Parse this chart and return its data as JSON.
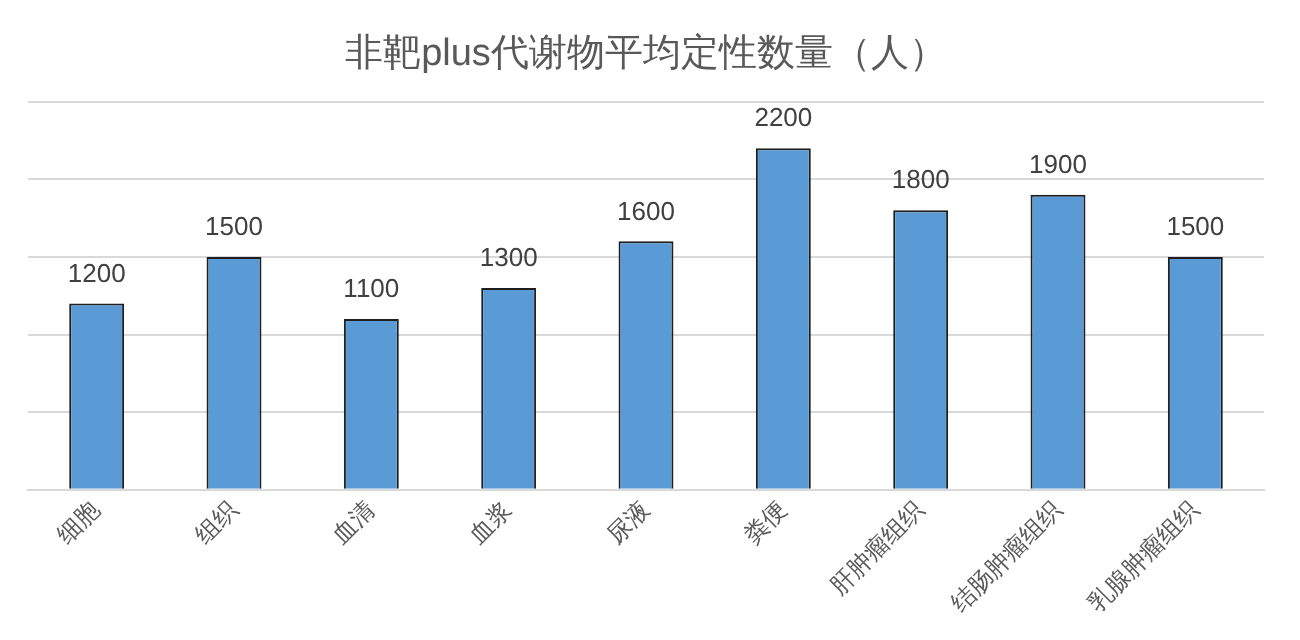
{
  "chart_data": {
    "type": "bar",
    "title": "非靶plus代谢物平均定性数量（人）",
    "categories": [
      "细胞",
      "组织",
      "血清",
      "血浆",
      "尿液",
      "粪便",
      "肝肿瘤组织",
      "结肠肿瘤组织",
      "乳腺肿瘤组织"
    ],
    "values": [
      1200,
      1500,
      1100,
      1300,
      1600,
      2200,
      1800,
      1900,
      1500
    ],
    "color": "#5b9bd5",
    "data_labels": true,
    "grid": "y",
    "tick_labels": "x",
    "ylim": [
      0,
      2500
    ],
    "yticks": [
      {
        "value": 0,
        "label": null
      },
      {
        "value": 500,
        "label": null
      },
      {
        "value": 1000,
        "label": null
      },
      {
        "value": 1500,
        "label": null
      },
      {
        "value": 2000,
        "label": null
      },
      {
        "value": 2500,
        "label": null
      }
    ]
  }
}
